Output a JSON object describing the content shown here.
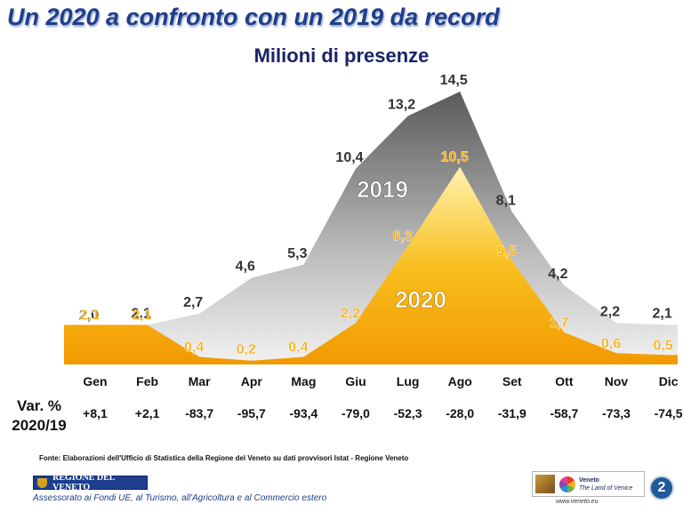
{
  "title": "Un 2020 a confronto con un 2019 da record",
  "chart_data": {
    "type": "area",
    "title": "Milioni di presenze",
    "categories": [
      "Gen",
      "Feb",
      "Mar",
      "Apr",
      "Mag",
      "Giu",
      "Lug",
      "Ago",
      "Set",
      "Ott",
      "Nov",
      "Dic"
    ],
    "series": [
      {
        "name": "2019",
        "values": [
          2.0,
          2.1,
          2.7,
          4.6,
          5.3,
          10.4,
          13.2,
          14.5,
          8.1,
          4.2,
          2.2,
          2.1
        ],
        "labels": [
          "2,0",
          "2,1",
          "2,7",
          "4,6",
          "5,3",
          "10,4",
          "13,2",
          "14,5",
          "8,1",
          "4,2",
          "2,2",
          "2,1"
        ]
      },
      {
        "name": "2020",
        "values": [
          2.1,
          2.1,
          0.4,
          0.2,
          0.4,
          2.2,
          6.3,
          10.5,
          5.5,
          1.7,
          0.6,
          0.5
        ],
        "labels": [
          "2,1",
          "2,1",
          "0,4",
          "0,2",
          "0,4",
          "2,2",
          "6,3",
          "10,5",
          "5,5",
          "1,7",
          "0,6",
          "0,5"
        ]
      }
    ],
    "ylim": [
      0,
      15
    ],
    "variation": {
      "label_line1": "Var. %",
      "label_line2": "2020/19",
      "values": [
        "+8,1",
        "+2,1",
        "-83,7",
        "-95,7",
        "-93,4",
        "-79,0",
        "-52,3",
        "-28,0",
        "-31,9",
        "-58,7",
        "-73,3",
        "-74,5"
      ]
    },
    "colors": {
      "series_2019": "#8c8c8c",
      "series_2020": "#f5a800",
      "label_2019": "#333333",
      "label_2020": "#f5a800"
    }
  },
  "footer": {
    "source": "Fonte: Elaborazioni dell'Ufficio di Statistica della Regione del Veneto su dati provvisori Istat - Regione Veneto",
    "logo_text": "REGIONE DEL VENETO",
    "department": "Assessorato ai Fondi UE, al Turismo, all'Agricoltura e al Commercio estero",
    "brand_line1": "Veneto",
    "brand_line2": "The Land of Venice",
    "website": "www.veneto.eu",
    "page_number": "2"
  }
}
